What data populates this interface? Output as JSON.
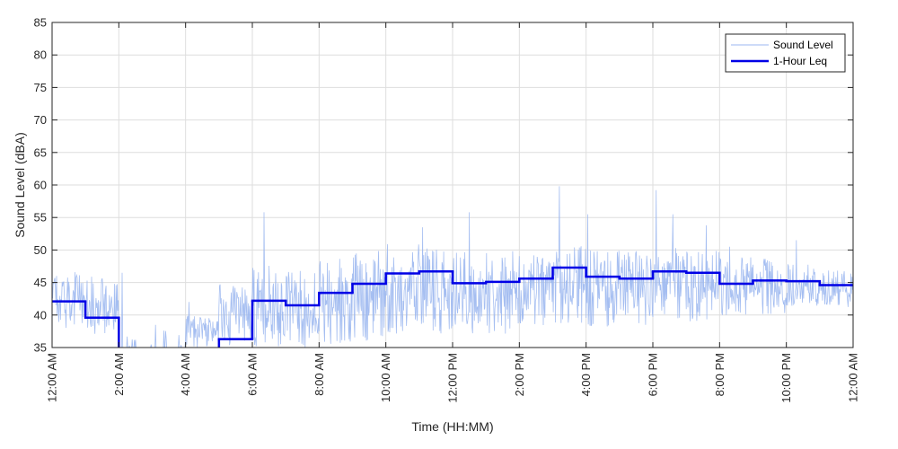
{
  "chart_data": {
    "type": "line",
    "title": "",
    "xlabel": "Time (HH:MM)",
    "ylabel": "Sound Level (dBA)",
    "xlim": [
      0,
      24
    ],
    "ylim": [
      35,
      85
    ],
    "grid": true,
    "legend_position": "top-right",
    "x_tick_labels": [
      "12:00 AM",
      "2:00 AM",
      "4:00 AM",
      "6:00 AM",
      "8:00 AM",
      "10:00 AM",
      "12:00 PM",
      "2:00 PM",
      "4:00 PM",
      "6:00 PM",
      "8:00 PM",
      "10:00 PM",
      "12:00 AM"
    ],
    "x_ticks_hours": [
      0,
      2,
      4,
      6,
      8,
      10,
      12,
      14,
      16,
      18,
      20,
      22,
      24
    ],
    "y_ticks": [
      35,
      40,
      45,
      50,
      55,
      60,
      65,
      70,
      75,
      80,
      85
    ],
    "series": [
      {
        "name": "Sound Level",
        "color": "#9bb7f0",
        "style": "thin-noisy-line",
        "hour_envelope": [
          {
            "hour": 0,
            "low": 38,
            "high": 47
          },
          {
            "hour": 1,
            "low": 37,
            "high": 46
          },
          {
            "hour": 2,
            "low": 35,
            "high": 37
          },
          {
            "hour": 3,
            "low": 35,
            "high": 38
          },
          {
            "hour": 4,
            "low": 35,
            "high": 40
          },
          {
            "hour": 5,
            "low": 35,
            "high": 45
          },
          {
            "hour": 6,
            "low": 35,
            "high": 48
          },
          {
            "hour": 7,
            "low": 35,
            "high": 47
          },
          {
            "hour": 8,
            "low": 35,
            "high": 49
          },
          {
            "hour": 9,
            "low": 36,
            "high": 50
          },
          {
            "hour": 10,
            "low": 37,
            "high": 51
          },
          {
            "hour": 11,
            "low": 37,
            "high": 51
          },
          {
            "hour": 12,
            "low": 37,
            "high": 50
          },
          {
            "hour": 13,
            "low": 37,
            "high": 50
          },
          {
            "hour": 14,
            "low": 38,
            "high": 50
          },
          {
            "hour": 15,
            "low": 38,
            "high": 51
          },
          {
            "hour": 16,
            "low": 38,
            "high": 50
          },
          {
            "hour": 17,
            "low": 38,
            "high": 50
          },
          {
            "hour": 18,
            "low": 39,
            "high": 51
          },
          {
            "hour": 19,
            "low": 39,
            "high": 50
          },
          {
            "hour": 20,
            "low": 40,
            "high": 49
          },
          {
            "hour": 21,
            "low": 40,
            "high": 49
          },
          {
            "hour": 22,
            "low": 41,
            "high": 48
          },
          {
            "hour": 23,
            "low": 41,
            "high": 47
          }
        ],
        "peaks": [
          {
            "x": 2.1,
            "y": 46.5
          },
          {
            "x": 3.1,
            "y": 38.5
          },
          {
            "x": 4.1,
            "y": 42
          },
          {
            "x": 6.35,
            "y": 55.8
          },
          {
            "x": 11.1,
            "y": 53.5
          },
          {
            "x": 12.5,
            "y": 55.8
          },
          {
            "x": 15.2,
            "y": 59.8
          },
          {
            "x": 16.05,
            "y": 55.5
          },
          {
            "x": 18.1,
            "y": 59.2
          },
          {
            "x": 18.6,
            "y": 55.5
          },
          {
            "x": 19.6,
            "y": 53.8
          },
          {
            "x": 20.3,
            "y": 50.5
          },
          {
            "x": 22.3,
            "y": 51.5
          }
        ]
      },
      {
        "name": "1-Hour Leq",
        "color": "#0000e6",
        "style": "step",
        "hours": [
          0,
          1,
          2,
          3,
          4,
          5,
          6,
          7,
          8,
          9,
          10,
          11,
          12,
          13,
          14,
          15,
          16,
          17,
          18,
          19,
          20,
          21,
          22,
          23
        ],
        "values": [
          42.1,
          39.6,
          34.0,
          34.0,
          34.0,
          36.3,
          42.2,
          41.5,
          43.4,
          44.8,
          46.4,
          46.7,
          44.9,
          45.1,
          45.6,
          47.3,
          45.9,
          45.6,
          46.7,
          46.5,
          44.8,
          45.3,
          45.2,
          44.6
        ]
      }
    ]
  }
}
